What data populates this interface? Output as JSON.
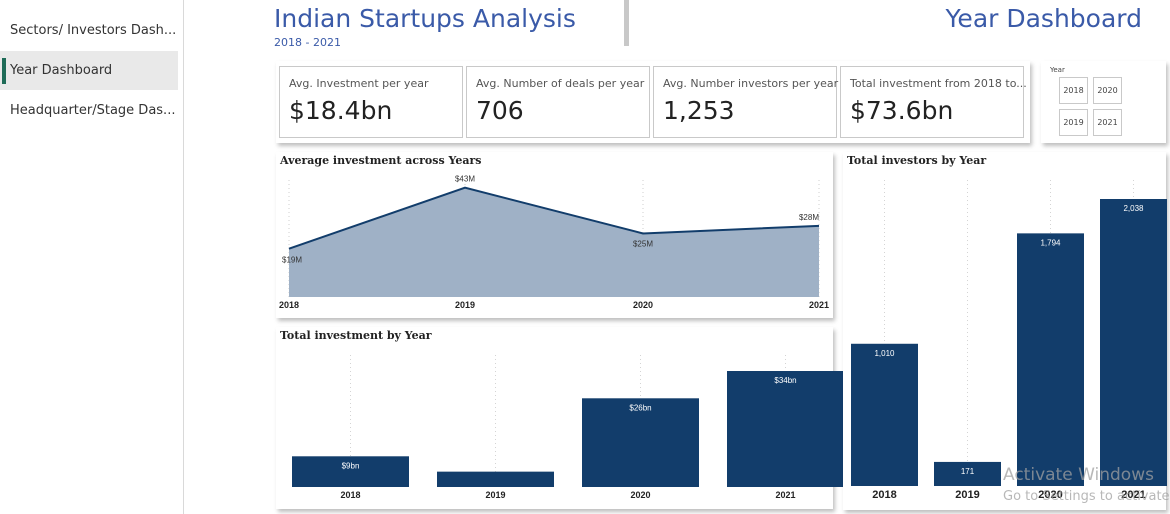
{
  "nav": {
    "items": [
      {
        "label": "Sectors/ Investors Dash..."
      },
      {
        "label": "Year Dashboard"
      },
      {
        "label": "Headquarter/Stage Das..."
      }
    ],
    "active_index": 1
  },
  "header": {
    "title": "Indian Startups Analysis",
    "subtitle": "2018 - 2021",
    "page_title": "Year Dashboard"
  },
  "kpis": [
    {
      "label": "Avg. Investment per year",
      "value": "$18.4bn"
    },
    {
      "label": "Avg. Number of deals per year",
      "value": "706"
    },
    {
      "label": "Avg. Number investors per year",
      "value": "1,253"
    },
    {
      "label": "Total investment from 2018 to...",
      "value": "$73.6bn"
    }
  ],
  "slicer": {
    "title": "Year",
    "options": [
      "2018",
      "2020",
      "2019",
      "2021"
    ]
  },
  "colors": {
    "accent": "#3a5aa8",
    "bar": "#123d6b",
    "area_fill": "#9fb1c6",
    "area_line": "#123d6b",
    "nav_indicator": "#1e6b57"
  },
  "chart_data": [
    {
      "id": "avg_investment",
      "type": "area",
      "title": "Average investment across Years",
      "categories": [
        "2018",
        "2019",
        "2020",
        "2021"
      ],
      "values": [
        19,
        43,
        25,
        28
      ],
      "labels": [
        "$19M",
        "$43M",
        "$25M",
        "$28M"
      ],
      "unit": "$M"
    },
    {
      "id": "total_investment",
      "type": "bar",
      "title": "Total investment by Year",
      "categories": [
        "2018",
        "2019",
        "2020",
        "2021"
      ],
      "values": [
        9,
        4.5,
        26,
        34
      ],
      "labels": [
        "$9bn",
        "",
        "$26bn",
        "$34bn"
      ],
      "unit": "$bn"
    },
    {
      "id": "total_investors",
      "type": "bar",
      "title": "Total investors by Year",
      "categories": [
        "2018",
        "2019",
        "2020",
        "2021"
      ],
      "values": [
        1010,
        171,
        1794,
        2038
      ],
      "labels": [
        "1,010",
        "171",
        "1,794",
        "2,038"
      ]
    }
  ],
  "watermark": {
    "line1": "Activate Windows",
    "line2": "Go to Settings to activate"
  }
}
